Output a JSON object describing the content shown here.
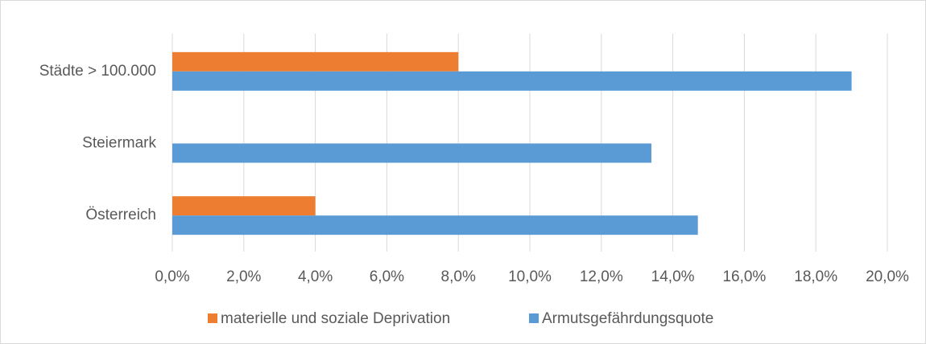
{
  "chart_data": {
    "type": "hbar",
    "categories": [
      "Städte > 100.000",
      "Steiermark",
      "Österreich"
    ],
    "series": [
      {
        "name": "materielle und soziale Deprivation",
        "color": "#ed7d31",
        "values": [
          8.0,
          null,
          4.0
        ]
      },
      {
        "name": "Armutsgefährdungsquote",
        "color": "#5b9bd5",
        "values": [
          19.0,
          13.4,
          14.7
        ]
      }
    ],
    "xlim": [
      0,
      20
    ],
    "xticks": [
      {
        "value": 0,
        "label": "0,0%"
      },
      {
        "value": 2,
        "label": "2,0%"
      },
      {
        "value": 4,
        "label": "4,0%"
      },
      {
        "value": 6,
        "label": "6,0%"
      },
      {
        "value": 8,
        "label": "8,0%"
      },
      {
        "value": 10,
        "label": "10,0%"
      },
      {
        "value": 12,
        "label": "12,0%"
      },
      {
        "value": 14,
        "label": "14,0%"
      },
      {
        "value": 16,
        "label": "16,0%"
      },
      {
        "value": 18,
        "label": "18,0%"
      },
      {
        "value": 20,
        "label": "20,0%"
      }
    ],
    "grid": true,
    "legend": "bottom"
  }
}
